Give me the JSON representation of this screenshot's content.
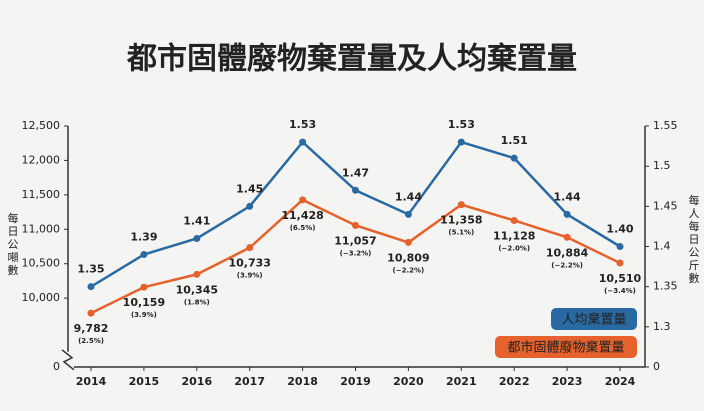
{
  "chart_data": {
    "type": "line",
    "title": "都市固體廢物棄置量及人均棄置量",
    "ylabel": "每日公噸數",
    "y2label": "每人每日公斤數",
    "categories": [
      "2014",
      "2015",
      "2016",
      "2017",
      "2018",
      "2019",
      "2020",
      "2021",
      "2022",
      "2023",
      "2024"
    ],
    "series": [
      {
        "name": "人均棄置量",
        "color": "#2a6aa3",
        "axis": "y2",
        "values": [
          1.35,
          1.39,
          1.41,
          1.45,
          1.53,
          1.47,
          1.44,
          1.53,
          1.51,
          1.44,
          1.4
        ],
        "value_labels": [
          "1.35",
          "1.39",
          "1.41",
          "1.45",
          "1.53",
          "1.47",
          "1.44",
          "1.53",
          "1.51",
          "1.44",
          "1.40"
        ]
      },
      {
        "name": "都市固體廢物棄置量",
        "color": "#e6612c",
        "axis": "y",
        "values": [
          9782,
          10159,
          10345,
          10733,
          11428,
          11057,
          10809,
          11358,
          11128,
          10884,
          10510
        ],
        "value_labels": [
          "9,782",
          "10,159",
          "10,345",
          "10,733",
          "11,428",
          "11,057",
          "10,809",
          "11,358",
          "11,128",
          "10,884",
          "10,510"
        ],
        "change_labels": [
          "(2.5%)",
          "(3.9%)",
          "(1.8%)",
          "(3.9%)",
          "(6.5%)",
          "(−3.2%)",
          "(−2.2%)",
          "(5.1%)",
          "(−2.0%)",
          "(−2.2%)",
          "(−3.4%)"
        ]
      }
    ],
    "ylim": [
      9000,
      12500
    ],
    "yticks": [
      0,
      {
        "value": 10000,
        "label": "10,000"
      },
      {
        "value": 10500,
        "label": "10,500"
      },
      {
        "value": 11000,
        "label": "11,000"
      },
      {
        "value": 11500,
        "label": "11,500"
      },
      {
        "value": 12000,
        "label": "12,000"
      },
      {
        "value": 12500,
        "label": "12,500"
      }
    ],
    "y2lim": [
      1.25,
      1.55
    ],
    "y2ticks": [
      0,
      1.3,
      1.35,
      1.4,
      1.45,
      1.5,
      1.55
    ],
    "axis_break": true,
    "legend": "lower right"
  }
}
